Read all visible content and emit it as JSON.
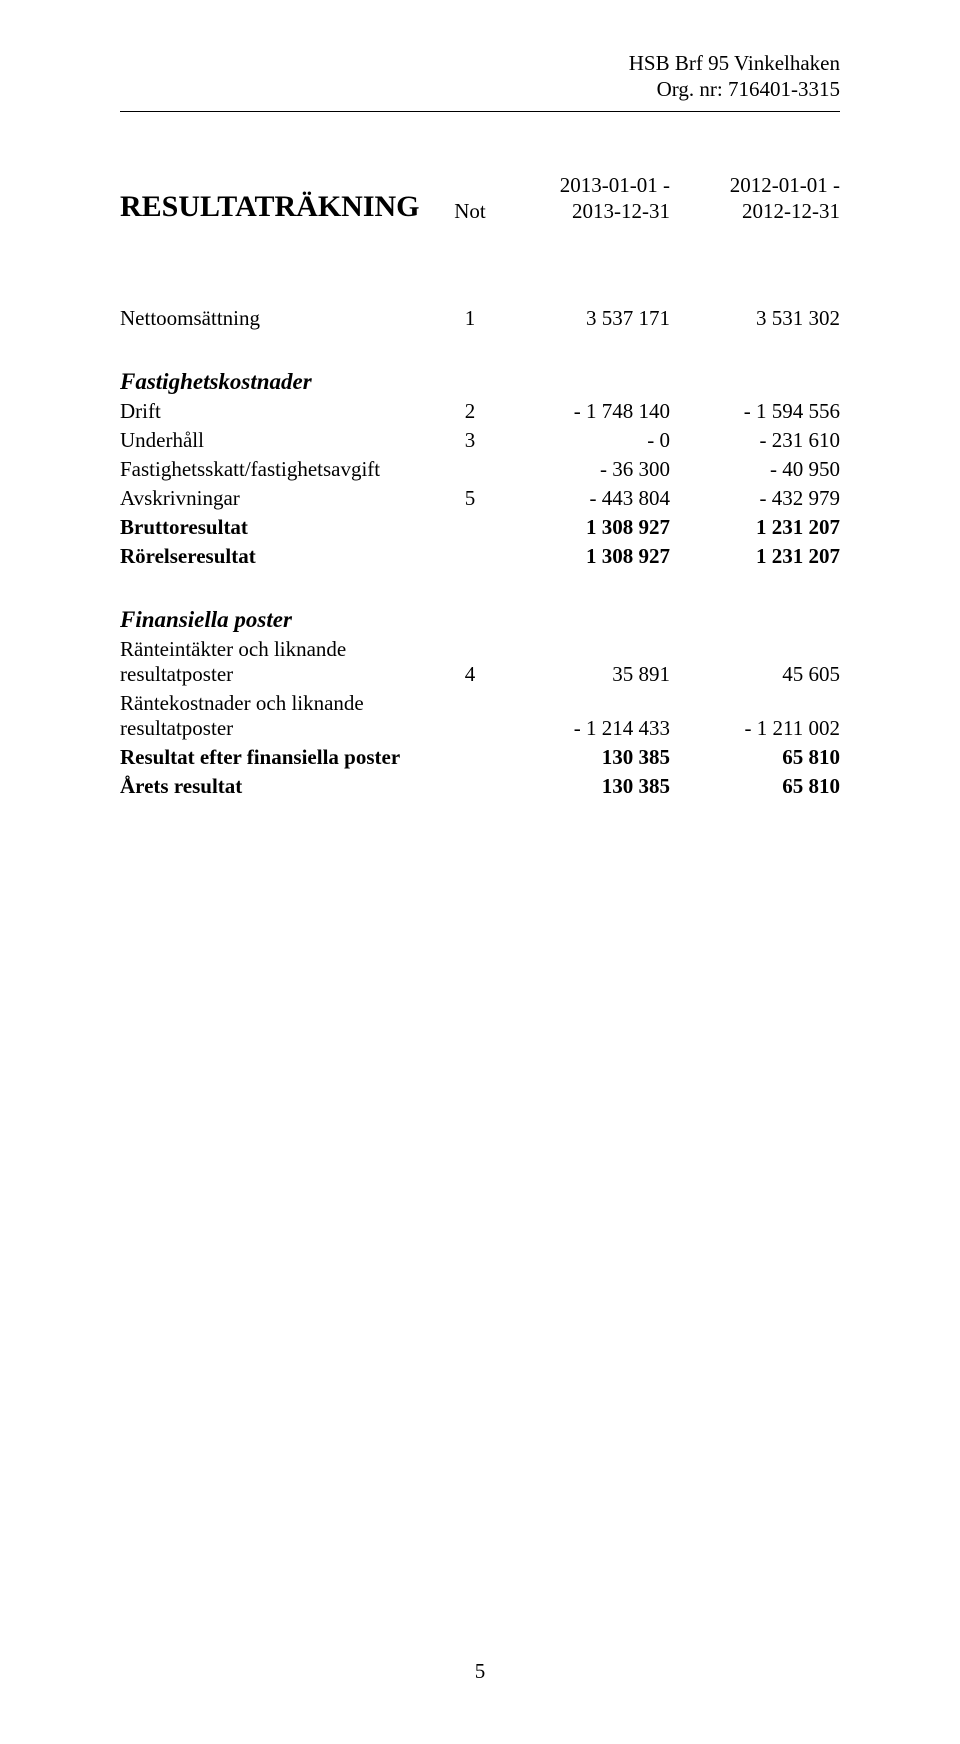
{
  "header": {
    "company": "HSB Brf 95 Vinkelhaken",
    "orgnr_label": "Org. nr: 716401-3315"
  },
  "title": "RESULTATRÄKNING",
  "columns": {
    "note_label": "Not",
    "period1_line1": "2013-01-01 -",
    "period1_line2": "2013-12-31",
    "period2_line1": "2012-01-01 -",
    "period2_line2": "2012-12-31"
  },
  "rows": {
    "netto": {
      "label": "Nettoomsättning",
      "note": "1",
      "v1": "3 537 171",
      "v2": "3 531 302"
    },
    "fastighetskost_heading": "Fastighetskostnader",
    "drift": {
      "label": "Drift",
      "note": "2",
      "v1": "- 1 748 140",
      "v2": "- 1 594 556"
    },
    "underhall": {
      "label": "Underhåll",
      "note": "3",
      "v1": "- 0",
      "v2": "- 231 610"
    },
    "skatt": {
      "label": "Fastighetsskatt/fastighetsavgift",
      "note": "",
      "v1": "- 36 300",
      "v2": "- 40 950"
    },
    "avskr": {
      "label": "Avskrivningar",
      "note": "5",
      "v1": "- 443 804",
      "v2": "- 432 979"
    },
    "brutto": {
      "label": "Bruttoresultat",
      "v1": "1 308 927",
      "v2": "1 231 207"
    },
    "rorelse": {
      "label": "Rörelseresultat",
      "v1": "1 308 927",
      "v2": "1 231 207"
    },
    "finans_heading": "Finansiella poster",
    "ranteint": {
      "label": "Ränteintäkter och liknande resultatposter",
      "note": "4",
      "v1": "35 891",
      "v2": "45 605"
    },
    "rantekost": {
      "label": "Räntekostnader och liknande resultatposter",
      "note": "",
      "v1": "- 1 214 433",
      "v2": "- 1 211 002"
    },
    "resfin": {
      "label": "Resultat efter finansiella poster",
      "v1": "130 385",
      "v2": "65 810"
    },
    "arets": {
      "label": "Årets resultat",
      "v1": "130 385",
      "v2": "65 810"
    }
  },
  "page_number": "5"
}
